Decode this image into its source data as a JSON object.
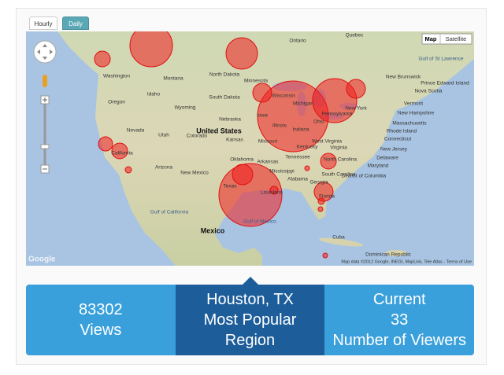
{
  "tabs": {
    "hourly": "Hourly",
    "daily": "Daily"
  },
  "map": {
    "controls": {
      "map": "Map",
      "satellite": "Satellite"
    },
    "labels": [
      "Ontario",
      "Quebec",
      "North Dakota",
      "Montana",
      "Minnesota",
      "South Dakota",
      "Wyoming",
      "Idaho",
      "Oregon",
      "Washington",
      "Nebraska",
      "Iowa",
      "Wisconsin",
      "Michigan",
      "Illinois",
      "Indiana",
      "Ohio",
      "Pennsylvania",
      "New York",
      "United States",
      "Nevada",
      "Utah",
      "Colorado",
      "Kansas",
      "Missouri",
      "Kentucky",
      "West Virginia",
      "Virginia",
      "California",
      "Oklahoma",
      "Arkansas",
      "Tennessee",
      "North Carolina",
      "South Carolina",
      "Arizona",
      "New Mexico",
      "Mississippi",
      "Alabama",
      "Georgia",
      "Texas",
      "Louisiana",
      "Florida",
      "Gulf of California",
      "Gulf of Mexico",
      "Mexico",
      "Cuba",
      "Dominican Republic",
      "Gulf of St Lawrence",
      "New Brunswick",
      "Prince Edward Island",
      "Nova Scotia",
      "Vermont",
      "New Hampshire",
      "Massachusetts",
      "Rhode Island",
      "Connecticut",
      "New Jersey",
      "Delaware",
      "Maryland",
      "District of Columbia"
    ],
    "attribution": "Map data ©2012 Google, INEGI, MapLink, Tele Atlas - Terms of Use",
    "logo": "Google"
  },
  "stats": {
    "views": {
      "value": 83302,
      "label": "Views"
    },
    "region": {
      "value": "Houston, TX",
      "label": "Most Popular Region"
    },
    "current": {
      "title": "Current",
      "value": 33,
      "label": "Number of Viewers"
    }
  }
}
